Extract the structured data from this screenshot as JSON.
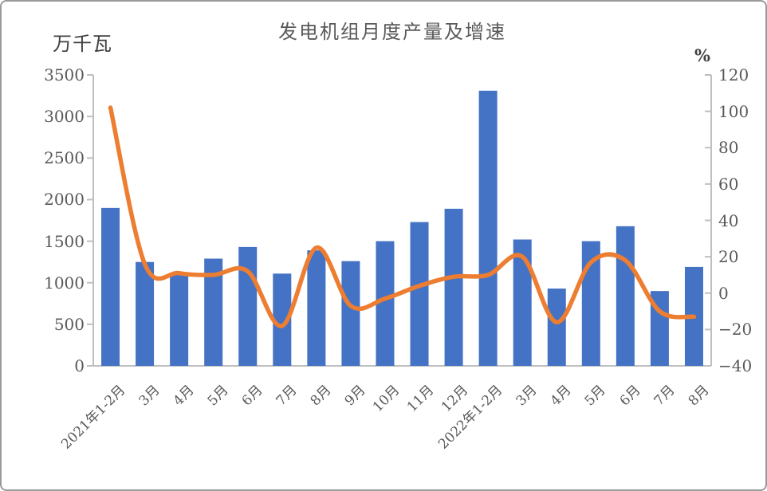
{
  "chart_data": {
    "type": "bar",
    "title": "发电机组月度产量及增速",
    "categories": [
      "2021年1-2月",
      "3月",
      "4月",
      "5月",
      "6月",
      "7月",
      "8月",
      "9月",
      "10月",
      "11月",
      "12月",
      "2022年1-2月",
      "3月",
      "4月",
      "5月",
      "6月",
      "7月",
      "8月"
    ],
    "series": [
      {
        "name": "monthly-production",
        "type": "bar",
        "axis": "left",
        "unit": "万千瓦",
        "color": "#4472C4",
        "values": [
          1900,
          1250,
          1100,
          1290,
          1430,
          1110,
          1390,
          1260,
          1500,
          1730,
          1890,
          3310,
          1520,
          930,
          1500,
          1680,
          900,
          1190
        ]
      },
      {
        "name": "yoy-growth-rate",
        "type": "line",
        "axis": "right",
        "unit": "%",
        "color": "#ED7D31",
        "values": [
          102,
          16,
          11,
          10,
          12,
          -18,
          25,
          -7,
          -3,
          4,
          9,
          10,
          20,
          -16,
          17,
          18,
          -10,
          -13
        ]
      }
    ],
    "left_axis": {
      "label": "万千瓦",
      "min": 0,
      "max": 3500,
      "ticks": [
        0,
        500,
        1000,
        1500,
        2000,
        2500,
        3000,
        3500
      ]
    },
    "right_axis": {
      "label": "%",
      "min": -40,
      "max": 120,
      "ticks": [
        -40,
        -20,
        0,
        20,
        40,
        60,
        80,
        100,
        120
      ]
    },
    "grid": false,
    "legend": "none",
    "styles": {
      "text_color": "#595959",
      "axis_color": "#BFBFBF"
    }
  }
}
